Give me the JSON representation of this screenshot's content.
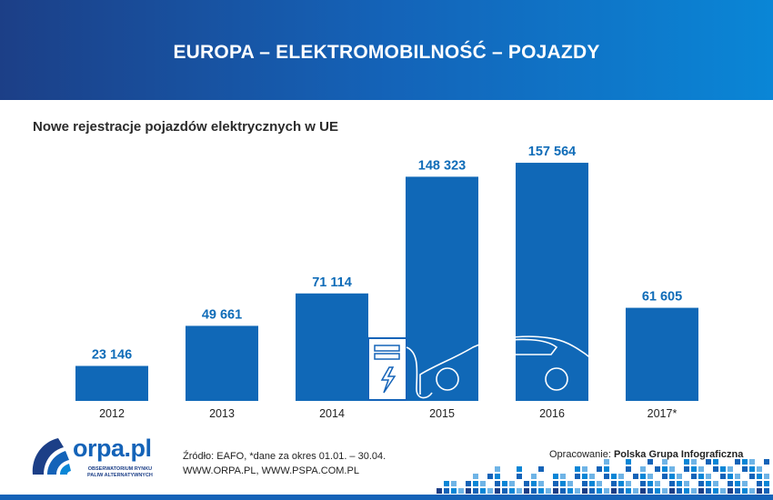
{
  "header": {
    "title": "EUROPA – ELEKTROMOBILNOŚĆ – POJAZDY"
  },
  "chart_data": {
    "type": "bar",
    "title": "Nowe rejestracje pojazdów elektrycznych w UE",
    "categories": [
      "2012",
      "2013",
      "2014",
      "2015",
      "2016",
      "2017*"
    ],
    "values": [
      23146,
      49661,
      71114,
      148323,
      157564,
      61605
    ],
    "value_labels": [
      "23 146",
      "49 661",
      "71 114",
      "148 323",
      "157 564",
      "61 605"
    ],
    "ylim": [
      0,
      160000
    ],
    "xlabel": "",
    "ylabel": "",
    "grid": false,
    "bar_color": "#1068b7"
  },
  "footer": {
    "source_line1": "Źródło: EAFO, *dane za okres 01.01. – 30.04.",
    "source_line2": "WWW.ORPA.PL, WWW.PSPA.COM.PL",
    "credit_label": "Opracowanie:",
    "credit_name": "Polska Grupa Infograficzna"
  },
  "logo": {
    "name": "orpa.pl",
    "sub_line1": "OBSERWATORIUM RYNKU",
    "sub_line2": "PALIW ALTERNATYWNYCH"
  },
  "colors": {
    "accent": "#1463b8",
    "header_dark": "#1c3f87",
    "header_light": "#0a86d6"
  }
}
